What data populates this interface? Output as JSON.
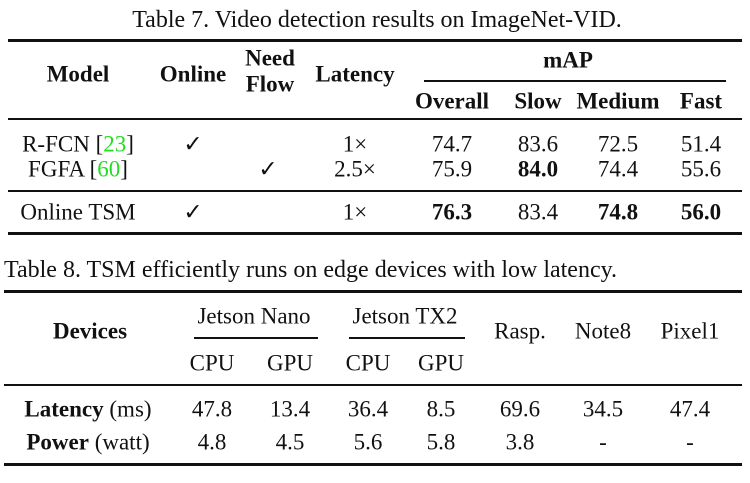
{
  "table7": {
    "caption": "Table 7. Video detection results on ImageNet-VID.",
    "headers": {
      "model": "Model",
      "online": "Online",
      "need": "Need",
      "flow": "Flow",
      "latency": "Latency",
      "map": "mAP",
      "overall": "Overall",
      "slow": "Slow",
      "medium": "Medium",
      "fast": "Fast"
    },
    "rows": [
      {
        "model": "R-FCN",
        "cite": "23",
        "online": "✓",
        "flow": "",
        "latency": "1×",
        "overall": "74.7",
        "slow": "83.6",
        "medium": "72.5",
        "fast": "51.4"
      },
      {
        "model": "FGFA",
        "cite": "60",
        "online": "",
        "flow": "✓",
        "latency": "2.5×",
        "overall": "75.9",
        "slow": "84.0",
        "medium": "74.4",
        "fast": "55.6"
      },
      {
        "model": "Online TSM",
        "online": "✓",
        "flow": "",
        "latency": "1×",
        "overall": "76.3",
        "slow": "83.4",
        "medium": "74.8",
        "fast": "56.0"
      }
    ],
    "bold_cells": [
      "FGFA.slow",
      "Online TSM.overall",
      "Online TSM.medium",
      "Online TSM.fast"
    ],
    "cite_color": "#22dd22"
  },
  "table8": {
    "caption": "Table 8. TSM efficiently runs on edge devices with low latency.",
    "headers": {
      "devices": "Devices",
      "jetson_nano": "Jetson Nano",
      "jetson_tx2": "Jetson TX2",
      "rasp": "Rasp.",
      "note8": "Note8",
      "pixel1": "Pixel1",
      "cpu": "CPU",
      "gpu": "GPU"
    },
    "rows": [
      {
        "metric": "Latency",
        "unit": "(ms)",
        "values": [
          "47.8",
          "13.4",
          "36.4",
          "8.5",
          "69.6",
          "34.5",
          "47.4"
        ]
      },
      {
        "metric": "Power",
        "unit": "(watt)",
        "values": [
          "4.8",
          "4.5",
          "5.6",
          "5.8",
          "3.8",
          "-",
          "-"
        ]
      }
    ]
  }
}
